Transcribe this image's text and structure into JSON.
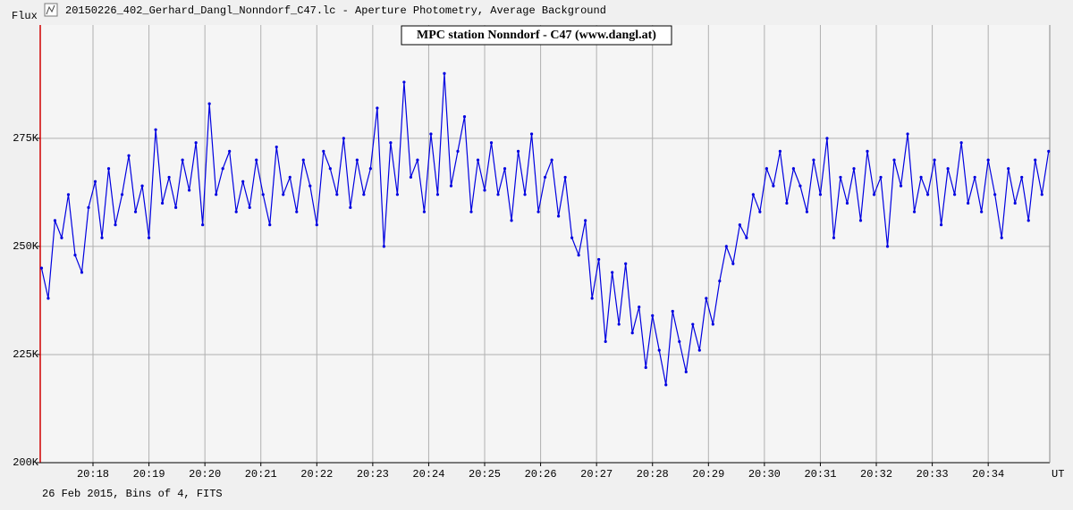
{
  "window_title": "20150226_402_Gerhard_Dangl_Nonndorf_C47.lc - Aperture Photometry, Average Background",
  "chart_data": {
    "type": "line",
    "title": "MPC station Nonndorf - C47 (www.dangl.at)",
    "y_label": "Flux",
    "x_label": "UT",
    "note": "26 Feb 2015, Bins of 4, FITS",
    "color": "#0000e0",
    "grid": true,
    "xlim": [
      17.057,
      35.1
    ],
    "xticks": [
      {
        "value": 18,
        "label": "20:18"
      },
      {
        "value": 19,
        "label": "20:19"
      },
      {
        "value": 20,
        "label": "20:20"
      },
      {
        "value": 21,
        "label": "20:21"
      },
      {
        "value": 22,
        "label": "20:22"
      },
      {
        "value": 23,
        "label": "20:23"
      },
      {
        "value": 24,
        "label": "20:24"
      },
      {
        "value": 25,
        "label": "20:25"
      },
      {
        "value": 26,
        "label": "20:26"
      },
      {
        "value": 27,
        "label": "20:27"
      },
      {
        "value": 28,
        "label": "20:28"
      },
      {
        "value": 29,
        "label": "20:29"
      },
      {
        "value": 30,
        "label": "20:30"
      },
      {
        "value": 31,
        "label": "20:31"
      },
      {
        "value": 32,
        "label": "20:32"
      },
      {
        "value": 33,
        "label": "20:33"
      },
      {
        "value": 34,
        "label": "20:34"
      }
    ],
    "ylim": [
      200000,
      301200
    ],
    "yticks": [
      {
        "value": 200000,
        "label": "200K"
      },
      {
        "value": 225000,
        "label": "225K"
      },
      {
        "value": 250000,
        "label": "250K"
      },
      {
        "value": 275000,
        "label": "275K"
      }
    ],
    "x": [
      17.08,
      17.2,
      17.32,
      17.44,
      17.56,
      17.68,
      17.8,
      17.92,
      18.04,
      18.16,
      18.28,
      18.4,
      18.52,
      18.64,
      18.76,
      18.88,
      19,
      19.12,
      19.24,
      19.36,
      19.48,
      19.6,
      19.72,
      19.84,
      19.96,
      20.08,
      20.2,
      20.32,
      20.44,
      20.56,
      20.68,
      20.8,
      20.92,
      21.04,
      21.16,
      21.28,
      21.4,
      21.52,
      21.64,
      21.76,
      21.88,
      22,
      22.12,
      22.24,
      22.36,
      22.48,
      22.6,
      22.72,
      22.84,
      22.96,
      23.08,
      23.2,
      23.32,
      23.44,
      23.56,
      23.68,
      23.8,
      23.92,
      24.04,
      24.16,
      24.28,
      24.4,
      24.52,
      24.64,
      24.76,
      24.88,
      25,
      25.12,
      25.24,
      25.36,
      25.48,
      25.6,
      25.72,
      25.84,
      25.96,
      26.08,
      26.2,
      26.32,
      26.44,
      26.56,
      26.68,
      26.8,
      26.92,
      27.04,
      27.16,
      27.28,
      27.4,
      27.52,
      27.64,
      27.76,
      27.88,
      28,
      28.12,
      28.24,
      28.36,
      28.48,
      28.6,
      28.72,
      28.84,
      28.96,
      29.08,
      29.2,
      29.32,
      29.44,
      29.56,
      29.68,
      29.8,
      29.92,
      30.04,
      30.16,
      30.28,
      30.4,
      30.52,
      30.64,
      30.76,
      30.88,
      31,
      31.12,
      31.24,
      31.36,
      31.48,
      31.6,
      31.72,
      31.84,
      31.96,
      32.08,
      32.2,
      32.32,
      32.44,
      32.56,
      32.68,
      32.8,
      32.92,
      33.04,
      33.16,
      33.28,
      33.4,
      33.52,
      33.64,
      33.76,
      33.88,
      34,
      34.12,
      34.24,
      34.36,
      34.48,
      34.6,
      34.72,
      34.84,
      34.96,
      35.08
    ],
    "values": [
      245000,
      238000,
      256000,
      252000,
      262000,
      248000,
      244000,
      259000,
      265000,
      252000,
      268000,
      255000,
      262000,
      271000,
      258000,
      264000,
      252000,
      277000,
      260000,
      266000,
      259000,
      270000,
      263000,
      274000,
      255000,
      283000,
      262000,
      268000,
      272000,
      258000,
      265000,
      259000,
      270000,
      262000,
      255000,
      273000,
      262000,
      266000,
      258000,
      270000,
      264000,
      255000,
      272000,
      268000,
      262000,
      275000,
      259000,
      270000,
      262000,
      268000,
      282000,
      250000,
      274000,
      262000,
      288000,
      266000,
      270000,
      258000,
      276000,
      262000,
      290000,
      264000,
      272000,
      280000,
      258000,
      270000,
      263000,
      274000,
      262000,
      268000,
      256000,
      272000,
      262000,
      276000,
      258000,
      266000,
      270000,
      257000,
      266000,
      252000,
      248000,
      256000,
      238000,
      247000,
      228000,
      244000,
      232000,
      246000,
      230000,
      236000,
      222000,
      234000,
      226000,
      218000,
      235000,
      228000,
      221000,
      232000,
      226000,
      238000,
      232000,
      242000,
      250000,
      246000,
      255000,
      252000,
      262000,
      258000,
      268000,
      264000,
      272000,
      260000,
      268000,
      264000,
      258000,
      270000,
      262000,
      275000,
      252000,
      266000,
      260000,
      268000,
      256000,
      272000,
      262000,
      266000,
      250000,
      270000,
      264000,
      276000,
      258000,
      266000,
      262000,
      270000,
      255000,
      268000,
      262000,
      274000,
      260000,
      266000,
      258000,
      270000,
      262000,
      252000,
      268000,
      260000,
      266000,
      256000,
      270000,
      262000,
      272000
    ]
  }
}
